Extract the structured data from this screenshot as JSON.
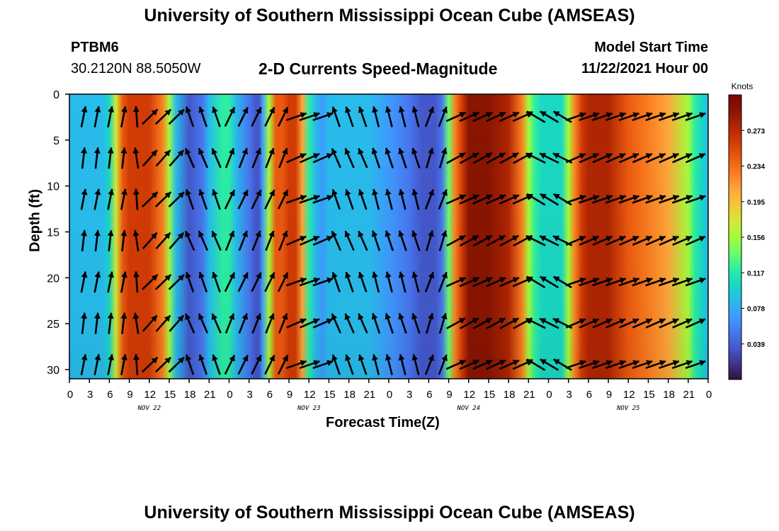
{
  "header": {
    "title": "University of Southern Mississippi Ocean Cube (AMSEAS)",
    "station": "PTBM6",
    "coords": "30.2120N  88.5050W",
    "subtitle": "2-D Currents Speed-Magnitude",
    "model_label": "Model Start Time",
    "model_time": "11/22/2021 Hour 00"
  },
  "footer": {
    "title": "University of Southern Mississippi Ocean Cube (AMSEAS)"
  },
  "colors": {
    "scale": [
      "#30123b",
      "#3d358b",
      "#4458cb",
      "#4777ef",
      "#3e9bfe",
      "#28bceb",
      "#1ad8c3",
      "#2ceea3",
      "#6cfd6c",
      "#a4fc3c",
      "#d2e935",
      "#f2c83a",
      "#fea73b",
      "#fb7e21",
      "#ec5a10",
      "#d23b05",
      "#b12603",
      "#8a1501",
      "#7a0403"
    ]
  },
  "chart_data": {
    "type": "heatmap",
    "xlabel": "Forecast Time(Z)",
    "ylabel": "Depth (ft)",
    "xlim": [
      0,
      96
    ],
    "ylim": [
      0,
      31
    ],
    "x_tick_labels": [
      "0",
      "3",
      "6",
      "9",
      "12",
      "15",
      "18",
      "21",
      "0",
      "3",
      "6",
      "9",
      "12",
      "15",
      "18",
      "21",
      "0",
      "3",
      "6",
      "9",
      "12",
      "15",
      "18",
      "21",
      "0",
      "3",
      "6",
      "9",
      "12",
      "15",
      "18",
      "21",
      "0"
    ],
    "y_ticks": [
      0,
      5,
      10,
      15,
      20,
      25,
      30
    ],
    "date_labels": [
      {
        "label": "NOV 22",
        "hour": 12
      },
      {
        "label": "NOV 23",
        "hour": 36
      },
      {
        "label": "NOV 24",
        "hour": 60
      },
      {
        "label": "NOV 25",
        "hour": 84
      }
    ],
    "colorbar": {
      "unit": "Knots",
      "min": 0.0,
      "max": 0.312,
      "ticks": [
        "0.039",
        "0.078",
        "0.117",
        "0.156",
        "0.195",
        "0.234",
        "0.273"
      ]
    },
    "speed_profile": {
      "hours": [
        0,
        3,
        5,
        6,
        7,
        8,
        9,
        10,
        12,
        14,
        15,
        16,
        18,
        20,
        21,
        23,
        24,
        25,
        27,
        28,
        28.5,
        29,
        30,
        31,
        32,
        33,
        34,
        35,
        36,
        37,
        38,
        39,
        42,
        45,
        48,
        51,
        53,
        54,
        55,
        56,
        57,
        58,
        59,
        60,
        62,
        63,
        66,
        68,
        69,
        70,
        71,
        72,
        74,
        75,
        76,
        77,
        78,
        81,
        84,
        87,
        90,
        93,
        94,
        95,
        96
      ],
      "knots": [
        0.085,
        0.09,
        0.08,
        0.11,
        0.17,
        0.24,
        0.262,
        0.26,
        0.265,
        0.22,
        0.15,
        0.08,
        0.04,
        0.045,
        0.085,
        0.12,
        0.115,
        0.08,
        0.05,
        0.04,
        0.035,
        0.075,
        0.16,
        0.24,
        0.25,
        0.265,
        0.255,
        0.2,
        0.12,
        0.085,
        0.075,
        0.08,
        0.09,
        0.085,
        0.075,
        0.06,
        0.04,
        0.03,
        0.03,
        0.05,
        0.14,
        0.22,
        0.265,
        0.29,
        0.295,
        0.29,
        0.275,
        0.23,
        0.15,
        0.12,
        0.105,
        0.1,
        0.11,
        0.16,
        0.22,
        0.26,
        0.275,
        0.27,
        0.25,
        0.23,
        0.2,
        0.15,
        0.12,
        0.1,
        0.08
      ]
    },
    "vector_directions_deg": [
      {
        "from": 0,
        "to": 9,
        "deg": 10
      },
      {
        "from": 9,
        "to": 12,
        "deg": -5
      },
      {
        "from": 12,
        "to": 17,
        "deg": 45
      },
      {
        "from": 17,
        "to": 24,
        "deg": -20
      },
      {
        "from": 24,
        "to": 33,
        "deg": 25
      },
      {
        "from": 33,
        "to": 40,
        "deg": 70
      },
      {
        "from": 40,
        "to": 46,
        "deg": -20
      },
      {
        "from": 46,
        "to": 54,
        "deg": -15
      },
      {
        "from": 54,
        "to": 57,
        "deg": 20
      },
      {
        "from": 57,
        "to": 69,
        "deg": 65
      },
      {
        "from": 69,
        "to": 75,
        "deg": -60
      },
      {
        "from": 75,
        "to": 96,
        "deg": 70
      }
    ]
  }
}
